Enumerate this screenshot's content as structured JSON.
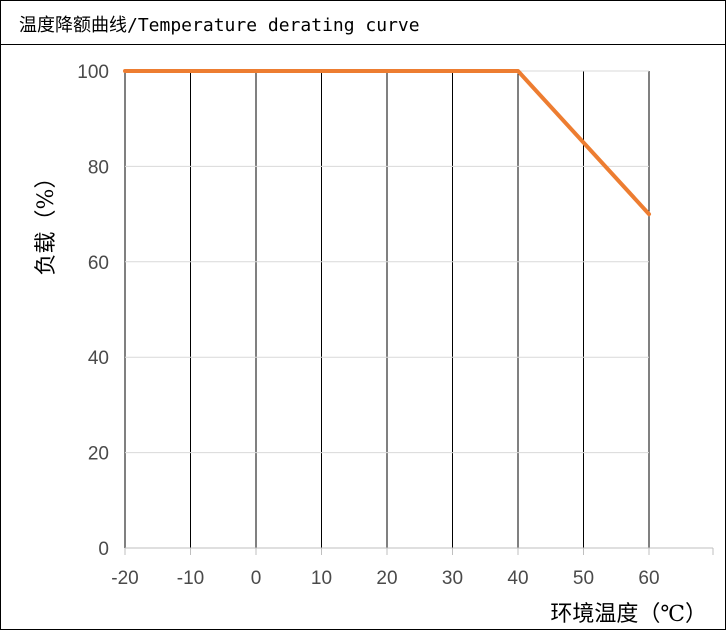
{
  "header": {
    "title": "温度降额曲线/Temperature derating curve"
  },
  "chart_data": {
    "type": "line",
    "title": "温度降额曲线/Temperature derating curve",
    "xlabel": "环境温度（℃）",
    "ylabel": "负载（%）",
    "x_ticks": [
      "-20",
      "-10",
      "0",
      "10",
      "20",
      "30",
      "40",
      "50",
      "60"
    ],
    "y_ticks": [
      "0",
      "20",
      "40",
      "60",
      "80",
      "100"
    ],
    "xlim": [
      -20,
      60
    ],
    "ylim": [
      0,
      100
    ],
    "grid": "vertical",
    "series": [
      {
        "x": [
          -20,
          40,
          60
        ],
        "y": [
          100,
          100,
          70
        ],
        "color": "#ed7d31"
      }
    ]
  }
}
